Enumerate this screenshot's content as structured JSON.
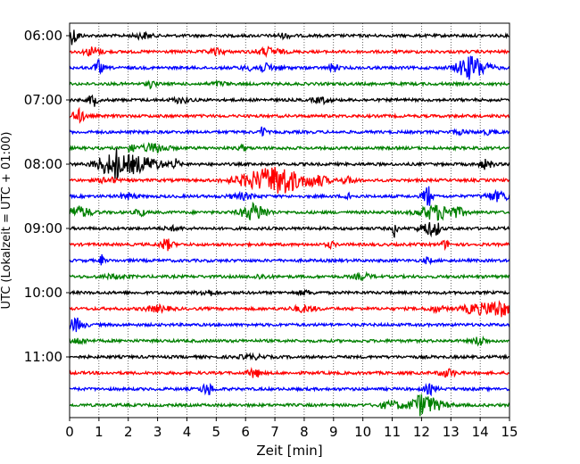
{
  "chart_data": {
    "type": "line",
    "title": "",
    "xlabel": "Zeit  [min]",
    "ylabel": "UTC (Lokalzeit = UTC + 01:00)",
    "xlim": [
      0,
      15
    ],
    "x_ticks": [
      0,
      1,
      2,
      3,
      4,
      5,
      6,
      7,
      8,
      9,
      10,
      11,
      12,
      13,
      14,
      15
    ],
    "x_tick_labels": [
      "0",
      "1",
      "2",
      "3",
      "4",
      "5",
      "6",
      "7",
      "8",
      "9",
      "10",
      "11",
      "12",
      "13",
      "14",
      "15"
    ],
    "y_tick_labels": [
      "06:00",
      "07:00",
      "08:00",
      "09:00",
      "10:00",
      "11:00"
    ],
    "y_tick_trace_index": [
      0,
      4,
      8,
      12,
      16,
      20
    ],
    "grid_x": true,
    "grid_style": "dotted",
    "colors": [
      "#000000",
      "#ff0000",
      "#0000ff",
      "#008000"
    ],
    "series": [
      {
        "start": "06:00",
        "color": "#000000",
        "events": [
          [
            0.1,
            9,
            0.15
          ],
          [
            2.5,
            3,
            0.2
          ],
          [
            7.3,
            2,
            0.2
          ]
        ]
      },
      {
        "start": "06:15",
        "color": "#ff0000",
        "events": [
          [
            0.8,
            5,
            0.2
          ],
          [
            5.0,
            3,
            0.2
          ],
          [
            6.8,
            4,
            0.3
          ]
        ]
      },
      {
        "start": "06:30",
        "color": "#0000ff",
        "events": [
          [
            1.0,
            8,
            0.1
          ],
          [
            6.6,
            4,
            0.4
          ],
          [
            9.0,
            5,
            0.1
          ],
          [
            13.6,
            10,
            0.3
          ],
          [
            14.0,
            5,
            0.3
          ]
        ]
      },
      {
        "start": "06:45",
        "color": "#008000",
        "events": [
          [
            2.8,
            4,
            0.1
          ],
          [
            5.1,
            2,
            0.2
          ]
        ]
      },
      {
        "start": "07:00",
        "color": "#000000",
        "events": [
          [
            0.8,
            7,
            0.1
          ],
          [
            3.8,
            3,
            0.2
          ],
          [
            8.6,
            3,
            0.2
          ]
        ]
      },
      {
        "start": "07:15",
        "color": "#ff0000",
        "events": [
          [
            0.3,
            7,
            0.15
          ]
        ]
      },
      {
        "start": "07:30",
        "color": "#0000ff",
        "events": [
          [
            6.6,
            9,
            0.05
          ],
          [
            13.3,
            2,
            0.2
          ],
          [
            14.3,
            2,
            0.2
          ]
        ]
      },
      {
        "start": "07:45",
        "color": "#008000",
        "events": [
          [
            2.1,
            5,
            0.1
          ],
          [
            2.9,
            5,
            0.3
          ],
          [
            5.9,
            3,
            0.1
          ]
        ]
      },
      {
        "start": "08:00",
        "color": "#000000",
        "events": [
          [
            1.3,
            10,
            0.3
          ],
          [
            1.6,
            12,
            0.05
          ],
          [
            2.1,
            9,
            0.3
          ],
          [
            2.8,
            6,
            0.3
          ],
          [
            3.6,
            5,
            0.1
          ],
          [
            14.2,
            5,
            0.15
          ]
        ]
      },
      {
        "start": "08:15",
        "color": "#ff0000",
        "events": [
          [
            1.3,
            3,
            0.2
          ],
          [
            6.5,
            9,
            0.6
          ],
          [
            7.3,
            12,
            0.4
          ],
          [
            8.4,
            6,
            0.3
          ],
          [
            9.5,
            3,
            0.2
          ]
        ]
      },
      {
        "start": "08:30",
        "color": "#0000ff",
        "events": [
          [
            2.0,
            3,
            0.2
          ],
          [
            5.9,
            3,
            0.3
          ],
          [
            9.5,
            10,
            0.05
          ],
          [
            12.2,
            13,
            0.1
          ],
          [
            14.6,
            5,
            0.3
          ]
        ]
      },
      {
        "start": "08:45",
        "color": "#008000",
        "events": [
          [
            0.3,
            6,
            0.3
          ],
          [
            2.4,
            5,
            0.1
          ],
          [
            6.3,
            9,
            0.3
          ],
          [
            12.5,
            8,
            0.4
          ],
          [
            13.2,
            4,
            0.2
          ]
        ]
      },
      {
        "start": "09:00",
        "color": "#000000",
        "events": [
          [
            3.5,
            2,
            0.2
          ],
          [
            11.1,
            11,
            0.05
          ],
          [
            12.2,
            6,
            0.2
          ],
          [
            12.5,
            6,
            0.1
          ]
        ]
      },
      {
        "start": "09:15",
        "color": "#ff0000",
        "events": [
          [
            3.3,
            6,
            0.15
          ],
          [
            8.9,
            3,
            0.1
          ],
          [
            12.8,
            4,
            0.1
          ]
        ]
      },
      {
        "start": "09:30",
        "color": "#0000ff",
        "events": [
          [
            1.1,
            6,
            0.05
          ],
          [
            12.2,
            3,
            0.1
          ]
        ]
      },
      {
        "start": "09:45",
        "color": "#008000",
        "events": [
          [
            1.5,
            2,
            0.3
          ],
          [
            6.5,
            2,
            0.2
          ],
          [
            10.0,
            3,
            0.2
          ]
        ]
      },
      {
        "start": "10:00",
        "color": "#000000",
        "events": [
          [
            4.7,
            3,
            0.2
          ],
          [
            8.0,
            2,
            0.2
          ]
        ]
      },
      {
        "start": "10:15",
        "color": "#ff0000",
        "events": [
          [
            3.0,
            3,
            0.3
          ],
          [
            8.0,
            3,
            0.3
          ],
          [
            12.5,
            3,
            0.2
          ],
          [
            13.8,
            5,
            0.3
          ],
          [
            14.6,
            9,
            0.3
          ]
        ]
      },
      {
        "start": "10:30",
        "color": "#0000ff",
        "events": [
          [
            0.2,
            7,
            0.2
          ]
        ]
      },
      {
        "start": "10:45",
        "color": "#008000",
        "events": [
          [
            0.3,
            3,
            0.2
          ],
          [
            14.0,
            5,
            0.15
          ]
        ]
      },
      {
        "start": "11:00",
        "color": "#000000",
        "events": [
          [
            6.2,
            2,
            0.3
          ]
        ]
      },
      {
        "start": "11:15",
        "color": "#ff0000",
        "events": [
          [
            6.3,
            5,
            0.15
          ],
          [
            12.9,
            4,
            0.2
          ]
        ]
      },
      {
        "start": "11:30",
        "color": "#0000ff",
        "events": [
          [
            4.7,
            6,
            0.15
          ],
          [
            12.3,
            5,
            0.15
          ]
        ]
      },
      {
        "start": "11:45",
        "color": "#008000",
        "events": [
          [
            11.0,
            4,
            0.3
          ],
          [
            12.0,
            11,
            0.25
          ],
          [
            12.5,
            4,
            0.3
          ]
        ]
      }
    ]
  }
}
